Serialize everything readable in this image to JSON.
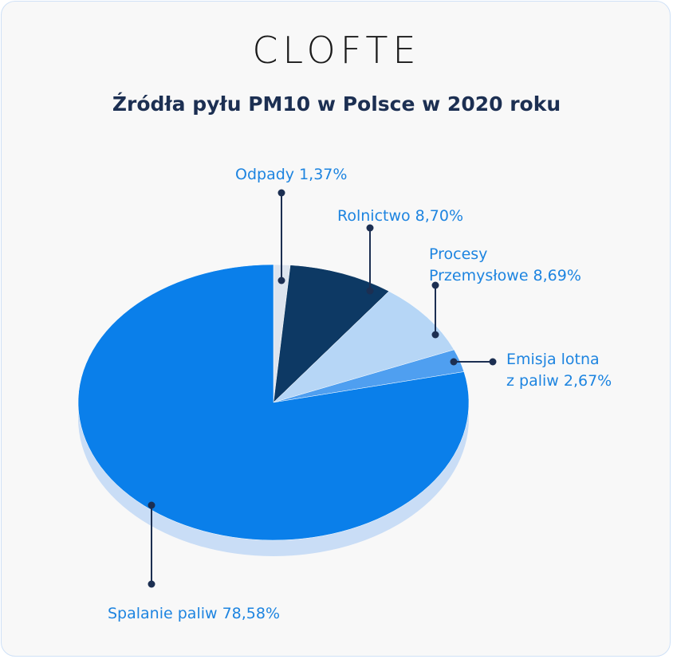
{
  "brand": {
    "logo_text": "CLOFTE"
  },
  "chart_data": {
    "type": "pie",
    "title": "Źródła pyłu PM10 w Polsce w 2020 roku",
    "slices": [
      {
        "name": "Odpady",
        "value": 1.37,
        "color": "#dde4ee",
        "label_lines": [
          "Odpady 1,37%"
        ]
      },
      {
        "name": "Rolnictwo",
        "value": 8.7,
        "color": "#0d3964",
        "label_lines": [
          "Rolnictwo 8,70%"
        ]
      },
      {
        "name": "Procesy Przemysłowe",
        "value": 8.69,
        "color": "#b6d6f6",
        "label_lines": [
          "Procesy",
          "Przemysłowe 8,69%"
        ]
      },
      {
        "name": "Emisja lotna z paliw",
        "value": 2.67,
        "color": "#4f9ff0",
        "label_lines": [
          "Emisja lotna",
          "z paliw 2,67%"
        ]
      },
      {
        "name": "Spalanie paliw",
        "value": 78.58,
        "color": "#0a7fea",
        "label_lines": [
          "Spalanie paliw 78,58%"
        ]
      }
    ],
    "shadow_color": "#c9ddf6",
    "leader_color": "#1c2f52",
    "label_color": "#1d84e0"
  }
}
